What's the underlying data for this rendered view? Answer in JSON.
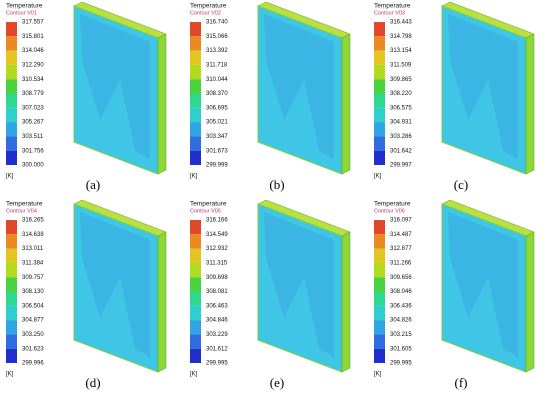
{
  "panels": [
    {
      "title": "Temperature",
      "contour": "Contour V01",
      "levels": [
        "317.557",
        "315.801",
        "314.046",
        "312.290",
        "310.534",
        "308.779",
        "307.023",
        "305.267",
        "303.511",
        "301.756",
        "300.000"
      ],
      "unit": "[K]",
      "caption": "(a)"
    },
    {
      "title": "Temperature",
      "contour": "Contour V02",
      "levels": [
        "316.740",
        "315.066",
        "313.392",
        "311.718",
        "310.044",
        "308.370",
        "306.695",
        "305.021",
        "303.347",
        "301.673",
        "299.999"
      ],
      "unit": "[K]",
      "caption": "(b)"
    },
    {
      "title": "Temperature",
      "contour": "Contour V03",
      "levels": [
        "316.443",
        "314.798",
        "313.154",
        "311.509",
        "309.865",
        "308.220",
        "306.575",
        "304.931",
        "303.286",
        "301.642",
        "299.997"
      ],
      "unit": "[K]",
      "caption": "(c)"
    },
    {
      "title": "Temperature",
      "contour": "Contour V04",
      "levels": [
        "316.265",
        "314.638",
        "313.011",
        "311.384",
        "309.757",
        "308.130",
        "306.504",
        "304.877",
        "303.250",
        "301.623",
        "299.996"
      ],
      "unit": "[K]",
      "caption": "(d)"
    },
    {
      "title": "Temperature",
      "contour": "Contour V05",
      "levels": [
        "316.166",
        "314.549",
        "312.932",
        "311.315",
        "309.698",
        "308.081",
        "306.463",
        "304.846",
        "303.229",
        "301.612",
        "299.995"
      ],
      "unit": "[K]",
      "caption": "(e)"
    },
    {
      "title": "Temperature",
      "contour": "Contour V06",
      "levels": [
        "316.097",
        "314.487",
        "312.877",
        "311.266",
        "309.656",
        "308.046",
        "306.436",
        "304.826",
        "303.215",
        "301.605",
        "299.995"
      ],
      "unit": "[K]",
      "caption": "(f)"
    }
  ]
}
